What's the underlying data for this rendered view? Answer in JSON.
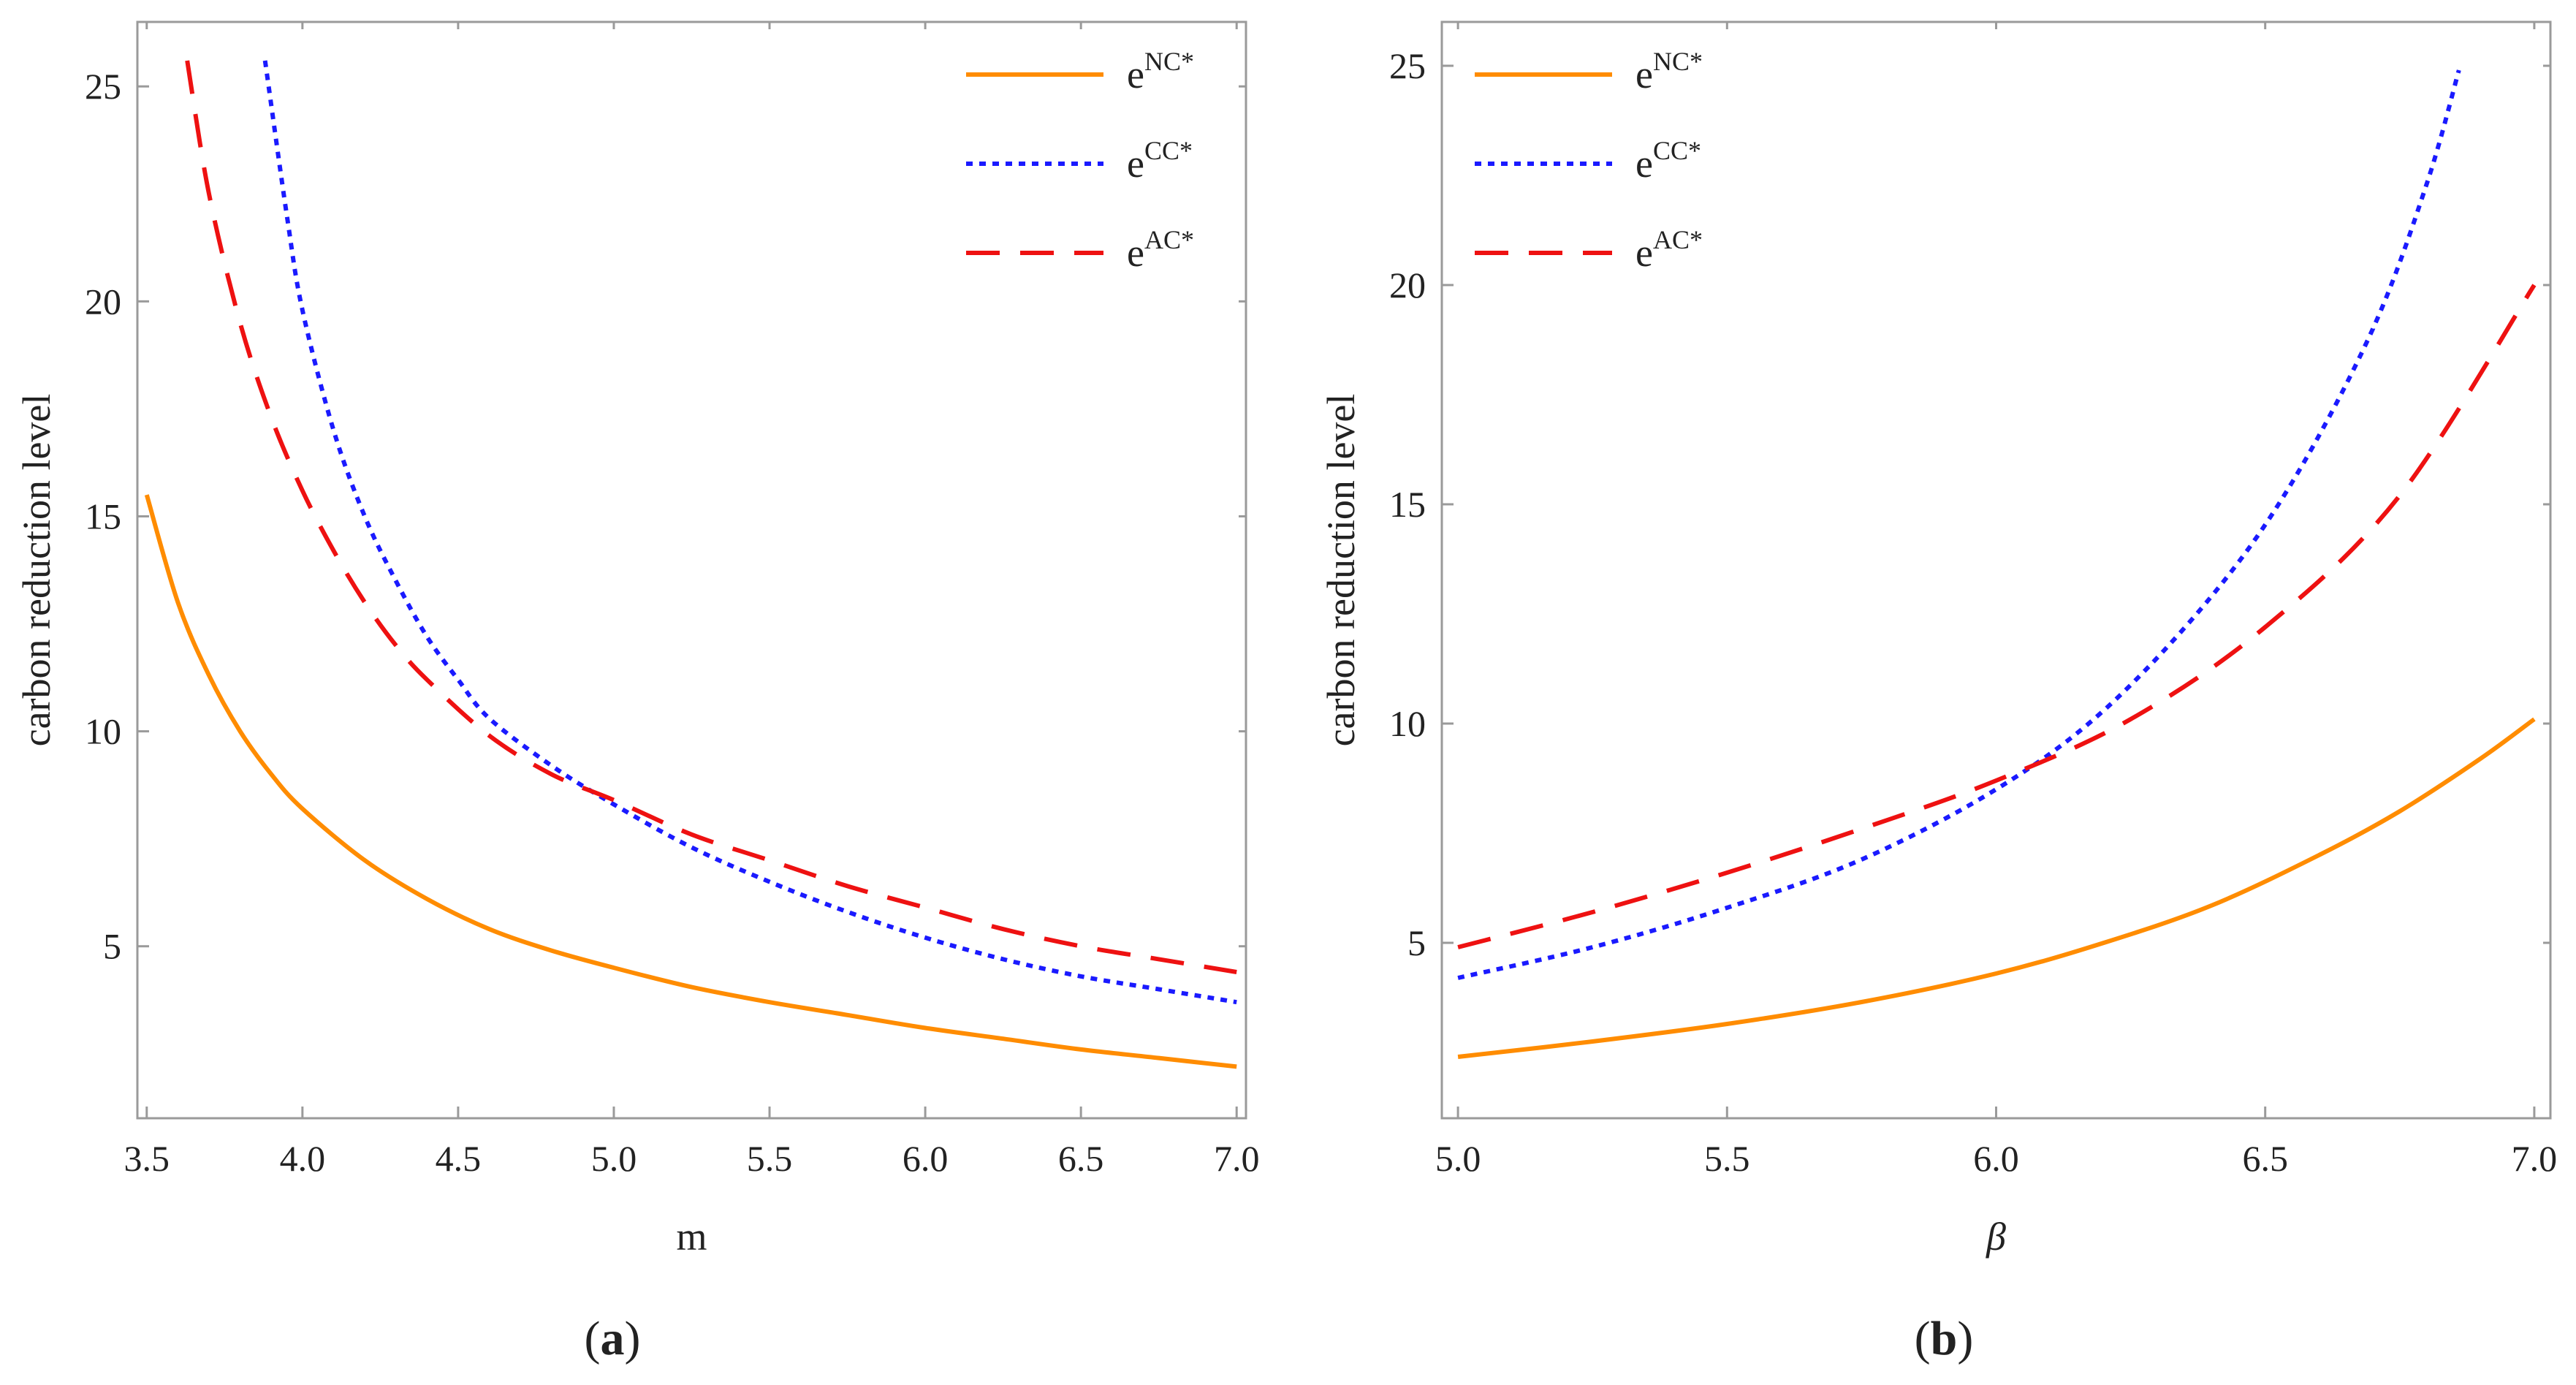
{
  "chart_data": [
    {
      "type": "line",
      "panel_label": "a",
      "xlabel": "m",
      "ylabel": "carbon reduction level",
      "xlim": [
        3.47,
        7.03
      ],
      "ylim": [
        1.0,
        26.5
      ],
      "xticks": [
        "3.5",
        "4.0",
        "4.5",
        "5.0",
        "5.5",
        "6.0",
        "6.5",
        "7.0"
      ],
      "yticks": [
        "5",
        "10",
        "15",
        "20",
        "25"
      ],
      "xtick_values": [
        3.5,
        4.0,
        4.5,
        5.0,
        5.5,
        6.0,
        6.5,
        7.0
      ],
      "ytick_values": [
        5,
        10,
        15,
        20,
        25
      ],
      "legend_position": "top-right",
      "series": [
        {
          "name": "NC",
          "legend_base": "e",
          "legend_sup": "NC*",
          "color": "#ff8c00",
          "style": "solid",
          "x": [
            3.5,
            3.6,
            3.7,
            3.8,
            3.9,
            4.0,
            4.2,
            4.4,
            4.6,
            4.8,
            5.0,
            5.25,
            5.5,
            5.75,
            6.0,
            6.25,
            6.5,
            6.75,
            7.0
          ],
          "y": [
            15.5,
            13.0,
            11.3,
            10.0,
            9.0,
            8.2,
            7.0,
            6.1,
            5.4,
            4.9,
            4.5,
            4.05,
            3.7,
            3.4,
            3.1,
            2.85,
            2.6,
            2.4,
            2.2
          ]
        },
        {
          "name": "CC",
          "legend_base": "e",
          "legend_sup": "CC*",
          "color": "#1a1aff",
          "style": "dotted",
          "x": [
            3.88,
            3.95,
            4.0,
            4.1,
            4.2,
            4.3,
            4.4,
            4.5,
            4.6,
            4.8,
            5.0,
            5.25,
            5.5,
            5.75,
            6.0,
            6.25,
            6.5,
            6.75,
            7.0
          ],
          "y": [
            25.6,
            22.0,
            19.8,
            17.0,
            15.0,
            13.5,
            12.2,
            11.2,
            10.3,
            9.2,
            8.3,
            7.3,
            6.5,
            5.8,
            5.2,
            4.7,
            4.3,
            4.0,
            3.7
          ]
        },
        {
          "name": "AC",
          "legend_base": "e",
          "legend_sup": "AC*",
          "color": "#ee1111",
          "style": "dashed",
          "x": [
            3.63,
            3.7,
            3.8,
            3.9,
            4.0,
            4.1,
            4.2,
            4.3,
            4.4,
            4.6,
            4.8,
            5.0,
            5.25,
            5.5,
            5.75,
            6.0,
            6.25,
            6.5,
            6.75,
            7.0
          ],
          "y": [
            25.6,
            22.5,
            19.5,
            17.3,
            15.6,
            14.2,
            13.0,
            12.0,
            11.2,
            9.9,
            9.0,
            8.4,
            7.6,
            7.0,
            6.4,
            5.9,
            5.4,
            5.0,
            4.7,
            4.4
          ]
        }
      ]
    },
    {
      "type": "line",
      "panel_label": "b",
      "xlabel": "β",
      "ylabel": "carbon reduction level",
      "xlim": [
        4.97,
        7.03
      ],
      "ylim": [
        1.0,
        26.0
      ],
      "xticks": [
        "5.0",
        "5.5",
        "6.0",
        "6.5",
        "7.0"
      ],
      "yticks": [
        "5",
        "10",
        "15",
        "20",
        "25"
      ],
      "xtick_values": [
        5.0,
        5.5,
        6.0,
        6.5,
        7.0
      ],
      "ytick_values": [
        5,
        10,
        15,
        20,
        25
      ],
      "legend_position": "top-left",
      "series": [
        {
          "name": "NC",
          "legend_base": "e",
          "legend_sup": "NC*",
          "color": "#ff8c00",
          "style": "solid",
          "x": [
            5.0,
            5.25,
            5.5,
            5.75,
            6.0,
            6.2,
            6.4,
            6.6,
            6.75,
            6.9,
            7.0
          ],
          "y": [
            2.4,
            2.75,
            3.15,
            3.65,
            4.3,
            5.0,
            5.85,
            7.0,
            8.0,
            9.2,
            10.1
          ]
        },
        {
          "name": "CC",
          "legend_base": "e",
          "legend_sup": "CC*",
          "color": "#1a1aff",
          "style": "dotted",
          "x": [
            5.0,
            5.25,
            5.5,
            5.75,
            6.0,
            6.2,
            6.4,
            6.55,
            6.7,
            6.8,
            6.86
          ],
          "y": [
            4.2,
            4.9,
            5.8,
            6.9,
            8.5,
            10.3,
            12.9,
            15.5,
            19.0,
            22.3,
            24.9
          ]
        },
        {
          "name": "AC",
          "legend_base": "e",
          "legend_sup": "AC*",
          "color": "#ee1111",
          "style": "dashed",
          "x": [
            5.0,
            5.25,
            5.5,
            5.75,
            6.0,
            6.25,
            6.5,
            6.75,
            7.0
          ],
          "y": [
            4.9,
            5.7,
            6.6,
            7.6,
            8.7,
            10.1,
            12.2,
            15.2,
            20.0
          ]
        }
      ]
    }
  ],
  "captions": [
    {
      "open": "(",
      "label": "a",
      "close": ")"
    },
    {
      "open": "(",
      "label": "b",
      "close": ")"
    }
  ]
}
